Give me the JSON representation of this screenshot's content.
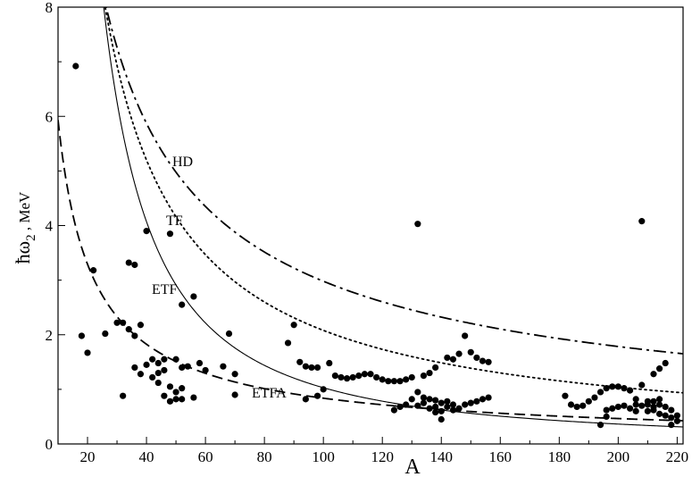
{
  "chart_data": {
    "type": "scatter",
    "xlabel": "A",
    "ylabel_main": "ħω",
    "ylabel_sub": "2",
    "ylabel_rest": " , MeV",
    "xlim": [
      10,
      222
    ],
    "ylim": [
      0,
      8
    ],
    "xticks": [
      20,
      40,
      60,
      80,
      100,
      120,
      140,
      160,
      180,
      200,
      220
    ],
    "yticks": [
      0,
      2,
      4,
      6,
      8
    ],
    "grid": false,
    "curves": [
      {
        "label": "HD",
        "style": "dash-dot",
        "coef": 90,
        "power": 0.74,
        "label_at": [
          200,
          5.15
        ]
      },
      {
        "label": "TF",
        "style": "dotted",
        "coef": 208,
        "power": 1.0,
        "label_at": [
          197,
          4.1
        ]
      },
      {
        "label": "ETF",
        "style": "solid",
        "coef": 1030,
        "power": 1.5,
        "label_at": [
          191,
          2.85
        ]
      },
      {
        "label": "ETFA",
        "style": "dashed",
        "coef": 42,
        "power": 0.85,
        "label_at": [
          312,
          0.92
        ]
      }
    ],
    "points": [
      [
        16,
        6.92
      ],
      [
        18,
        1.98
      ],
      [
        20,
        1.67
      ],
      [
        22,
        3.18
      ],
      [
        26,
        2.02
      ],
      [
        30,
        2.22
      ],
      [
        32,
        2.22
      ],
      [
        32,
        0.88
      ],
      [
        34,
        2.1
      ],
      [
        34,
        3.32
      ],
      [
        36,
        3.28
      ],
      [
        36,
        1.4
      ],
      [
        36,
        1.98
      ],
      [
        38,
        1.28
      ],
      [
        38,
        2.18
      ],
      [
        40,
        1.45
      ],
      [
        40,
        3.9
      ],
      [
        42,
        1.55
      ],
      [
        42,
        1.22
      ],
      [
        44,
        1.12
      ],
      [
        44,
        1.48
      ],
      [
        44,
        1.3
      ],
      [
        46,
        0.88
      ],
      [
        46,
        1.55
      ],
      [
        46,
        1.35
      ],
      [
        48,
        0.78
      ],
      [
        48,
        1.05
      ],
      [
        48,
        3.85
      ],
      [
        50,
        0.95
      ],
      [
        50,
        0.82
      ],
      [
        50,
        1.55
      ],
      [
        52,
        1.02
      ],
      [
        52,
        0.82
      ],
      [
        52,
        1.4
      ],
      [
        52,
        2.55
      ],
      [
        54,
        1.42
      ],
      [
        56,
        2.7
      ],
      [
        56,
        0.85
      ],
      [
        58,
        1.48
      ],
      [
        60,
        1.35
      ],
      [
        66,
        1.42
      ],
      [
        68,
        2.02
      ],
      [
        70,
        1.28
      ],
      [
        70,
        0.9
      ],
      [
        88,
        1.85
      ],
      [
        90,
        2.18
      ],
      [
        92,
        1.5
      ],
      [
        94,
        0.82
      ],
      [
        94,
        1.42
      ],
      [
        96,
        1.4
      ],
      [
        98,
        1.4
      ],
      [
        98,
        0.88
      ],
      [
        100,
        1.0
      ],
      [
        102,
        1.48
      ],
      [
        104,
        1.25
      ],
      [
        106,
        1.22
      ],
      [
        108,
        1.2
      ],
      [
        110,
        1.22
      ],
      [
        112,
        1.25
      ],
      [
        114,
        1.28
      ],
      [
        116,
        1.28
      ],
      [
        118,
        1.22
      ],
      [
        120,
        1.18
      ],
      [
        122,
        1.15
      ],
      [
        124,
        0.62
      ],
      [
        124,
        1.15
      ],
      [
        126,
        1.15
      ],
      [
        126,
        0.68
      ],
      [
        128,
        0.72
      ],
      [
        128,
        1.18
      ],
      [
        130,
        0.82
      ],
      [
        130,
        1.22
      ],
      [
        132,
        4.03
      ],
      [
        132,
        0.7
      ],
      [
        132,
        0.95
      ],
      [
        134,
        1.25
      ],
      [
        134,
        0.85
      ],
      [
        134,
        0.75
      ],
      [
        136,
        1.3
      ],
      [
        136,
        0.82
      ],
      [
        136,
        0.65
      ],
      [
        138,
        0.58
      ],
      [
        138,
        0.68
      ],
      [
        138,
        0.8
      ],
      [
        138,
        1.4
      ],
      [
        140,
        0.45
      ],
      [
        140,
        0.6
      ],
      [
        140,
        0.75
      ],
      [
        142,
        0.78
      ],
      [
        142,
        1.58
      ],
      [
        142,
        0.68
      ],
      [
        144,
        1.55
      ],
      [
        144,
        0.72
      ],
      [
        144,
        0.62
      ],
      [
        146,
        0.65
      ],
      [
        146,
        1.65
      ],
      [
        148,
        0.72
      ],
      [
        148,
        1.98
      ],
      [
        150,
        0.75
      ],
      [
        150,
        1.68
      ],
      [
        152,
        0.78
      ],
      [
        152,
        1.58
      ],
      [
        154,
        0.82
      ],
      [
        154,
        1.52
      ],
      [
        156,
        0.85
      ],
      [
        156,
        1.5
      ],
      [
        182,
        0.88
      ],
      [
        184,
        0.72
      ],
      [
        186,
        0.68
      ],
      [
        188,
        0.7
      ],
      [
        190,
        0.78
      ],
      [
        192,
        0.85
      ],
      [
        194,
        0.35
      ],
      [
        194,
        0.95
      ],
      [
        196,
        0.5
      ],
      [
        196,
        0.62
      ],
      [
        196,
        1.02
      ],
      [
        198,
        0.65
      ],
      [
        198,
        1.05
      ],
      [
        200,
        0.68
      ],
      [
        200,
        1.05
      ],
      [
        202,
        0.7
      ],
      [
        202,
        1.02
      ],
      [
        204,
        0.65
      ],
      [
        204,
        0.98
      ],
      [
        206,
        0.72
      ],
      [
        206,
        0.82
      ],
      [
        206,
        0.6
      ],
      [
        208,
        4.08
      ],
      [
        208,
        0.7
      ],
      [
        208,
        1.08
      ],
      [
        210,
        0.78
      ],
      [
        210,
        0.6
      ],
      [
        210,
        0.72
      ],
      [
        212,
        0.78
      ],
      [
        212,
        0.62
      ],
      [
        212,
        0.68
      ],
      [
        212,
        1.28
      ],
      [
        214,
        0.82
      ],
      [
        214,
        0.72
      ],
      [
        214,
        1.38
      ],
      [
        214,
        0.55
      ],
      [
        216,
        0.52
      ],
      [
        216,
        0.68
      ],
      [
        216,
        1.48
      ],
      [
        218,
        0.48
      ],
      [
        218,
        0.62
      ],
      [
        218,
        0.35
      ],
      [
        220,
        0.42
      ],
      [
        220,
        0.52
      ]
    ]
  }
}
